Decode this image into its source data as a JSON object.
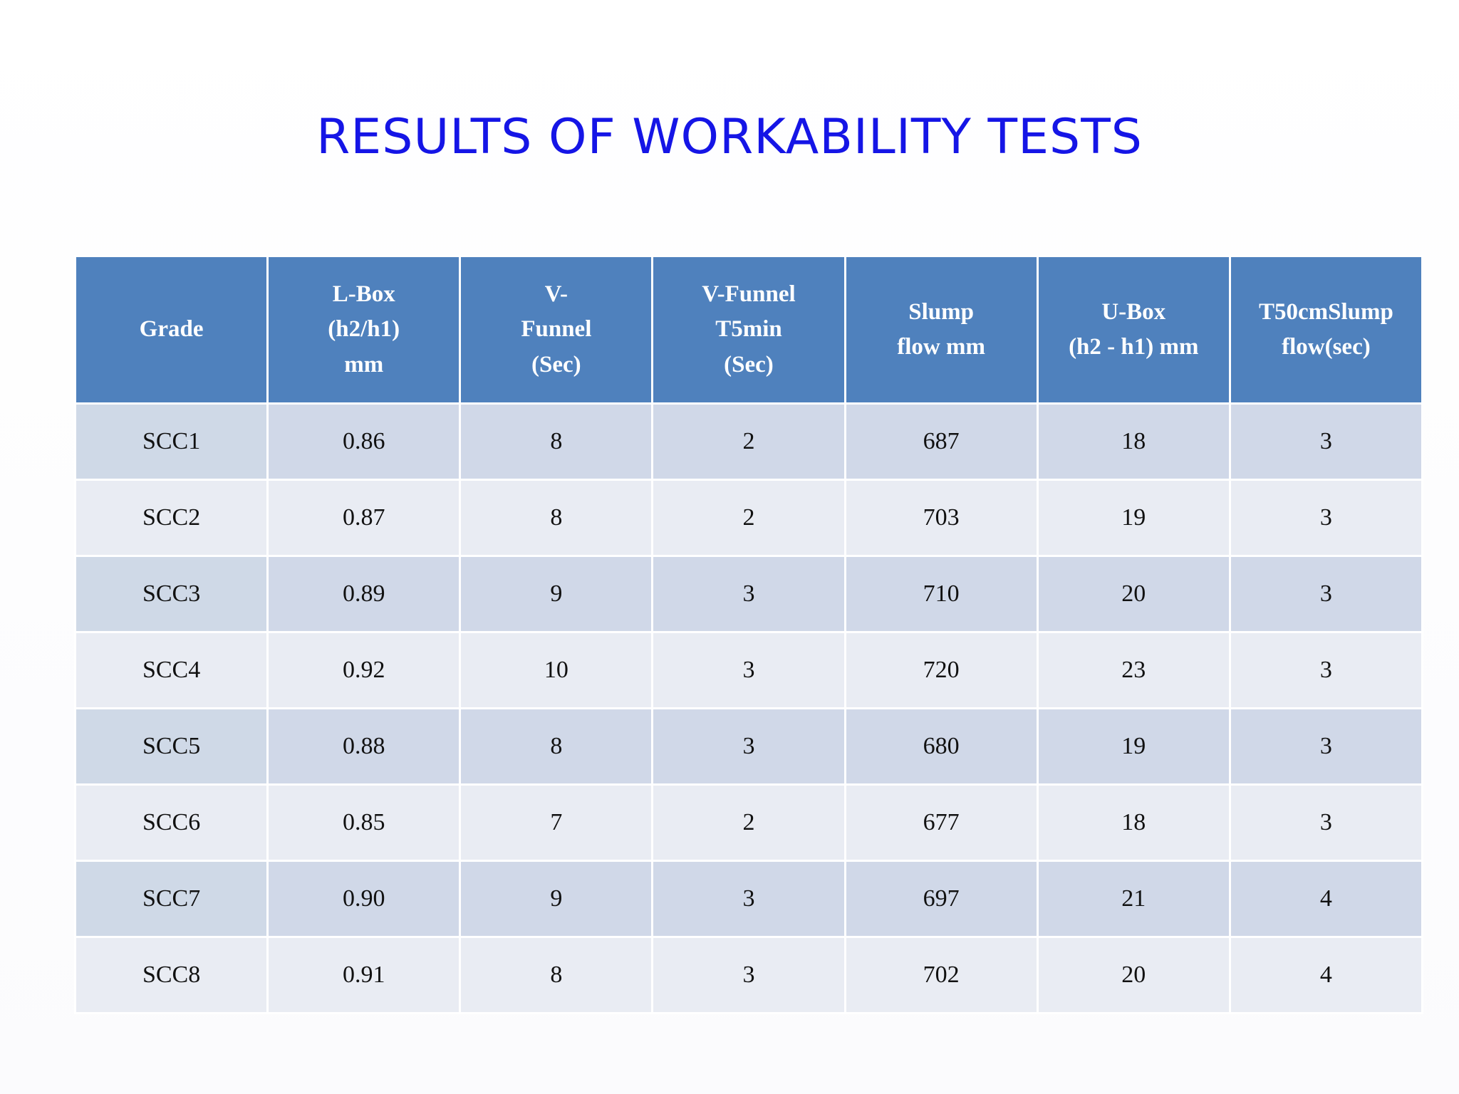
{
  "title": "RESULTS OF WORKABILITY TESTS",
  "table": {
    "headers": [
      {
        "lines": [
          "Grade"
        ]
      },
      {
        "lines": [
          "L-Box",
          "(h2/h1)",
          "mm"
        ]
      },
      {
        "lines": [
          "V-",
          "Funnel",
          "(Sec)"
        ]
      },
      {
        "lines": [
          "V-Funnel",
          "T5min",
          "(Sec)"
        ]
      },
      {
        "lines": [
          "Slump",
          "flow mm"
        ]
      },
      {
        "lines": [
          "U-Box",
          "(h2 - h1) mm"
        ]
      },
      {
        "lines": [
          "T50cmSlump",
          "flow(sec)"
        ]
      }
    ],
    "rows": [
      [
        "SCC1",
        "0.86",
        "8",
        "2",
        "687",
        "18",
        "3"
      ],
      [
        "SCC2",
        "0.87",
        "8",
        "2",
        "703",
        "19",
        "3"
      ],
      [
        "SCC3",
        "0.89",
        "9",
        "3",
        "710",
        "20",
        "3"
      ],
      [
        "SCC4",
        "0.92",
        "10",
        "3",
        "720",
        "23",
        "3"
      ],
      [
        "SCC5",
        "0.88",
        "8",
        "3",
        "680",
        "19",
        "3"
      ],
      [
        "SCC6",
        "0.85",
        "7",
        "2",
        "677",
        "18",
        "3"
      ],
      [
        "SCC7",
        "0.90",
        "9",
        "3",
        "697",
        "21",
        "4"
      ],
      [
        "SCC8",
        "0.91",
        "8",
        "3",
        "702",
        "20",
        "4"
      ]
    ]
  },
  "colors": {
    "title": "#1515e6",
    "header_bg": "#4f81bd",
    "row_odd_bg": "#d0d8e8",
    "row_even_bg": "#e9ecf3"
  }
}
